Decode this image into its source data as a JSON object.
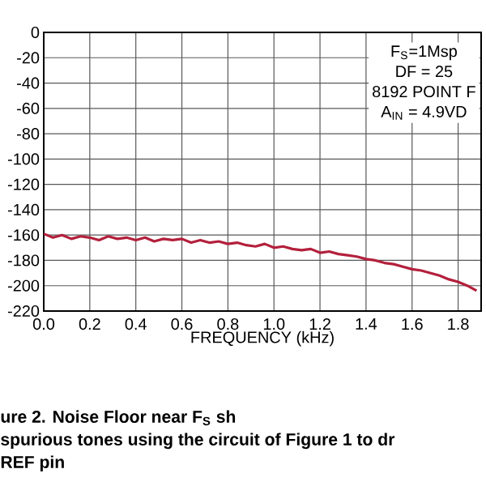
{
  "chart_data": {
    "type": "line",
    "xlabel": "FREQUENCY (kHz)",
    "x": [
      0,
      0.04,
      0.08,
      0.12,
      0.16,
      0.2,
      0.24,
      0.28,
      0.32,
      0.36,
      0.4,
      0.44,
      0.48,
      0.52,
      0.56,
      0.6,
      0.64,
      0.68,
      0.72,
      0.76,
      0.8,
      0.84,
      0.88,
      0.92,
      0.96,
      1.0,
      1.04,
      1.08,
      1.12,
      1.16,
      1.2,
      1.24,
      1.28,
      1.32,
      1.36,
      1.4,
      1.44,
      1.48,
      1.52,
      1.56,
      1.6,
      1.64,
      1.68,
      1.72,
      1.76,
      1.8,
      1.84,
      1.88
    ],
    "series": [
      {
        "color": "#b3203c",
        "values": [
          -159,
          -162,
          -160,
          -163,
          -161,
          -162,
          -164,
          -161,
          -163,
          -162,
          -164,
          -162,
          -165,
          -163,
          -164,
          -163,
          -166,
          -164,
          -166,
          -165,
          -167,
          -166,
          -168,
          -169,
          -167,
          -170,
          -169,
          -171,
          -172,
          -171,
          -174,
          -173,
          -175,
          -176,
          -177,
          -179,
          -180,
          -182,
          -183,
          -185,
          -187,
          -188,
          -190,
          -192,
          -195,
          -197,
          -200,
          -204
        ]
      }
    ],
    "xlim": [
      0,
      1.9
    ],
    "ylim": [
      -220,
      0
    ],
    "xticks": [
      {
        "value": 0,
        "label": "0.0"
      },
      0.2,
      0.4,
      0.6,
      0.8,
      {
        "value": 1,
        "label": "1.0"
      },
      1.2,
      1.4,
      1.6,
      1.8
    ],
    "yticks": [
      0,
      -20,
      -40,
      -60,
      -80,
      -100,
      -120,
      -140,
      -160,
      -180,
      -200,
      -220
    ],
    "grid": true,
    "marker": "none",
    "line_style": "solid",
    "annotations": [
      "F$_{S}$=1Msp",
      "DF = 25",
      "8192 POINT F",
      "A$_{IN}$ = 4.9VD",
      "ure 2. Noise Floor near F$_{S}$ sh",
      "spurious tones using the circuit of Figure 1 to dr",
      "REF pin"
    ]
  }
}
